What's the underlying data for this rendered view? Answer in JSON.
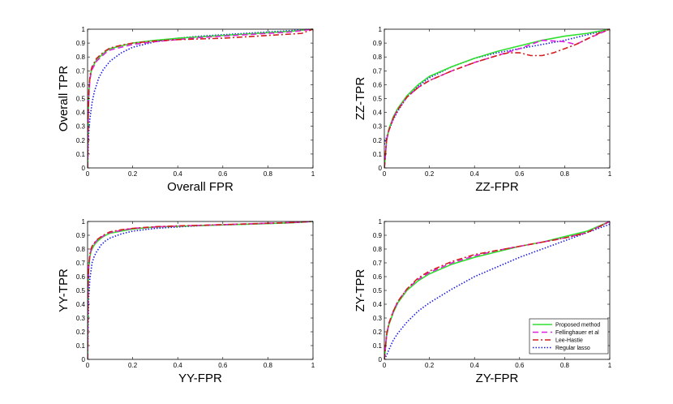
{
  "chart_data": [
    {
      "type": "line",
      "xlabel": "Overall FPR",
      "ylabel": "Overall TPR",
      "xlim": [
        0,
        1
      ],
      "ylim": [
        0,
        1
      ],
      "xticks": [
        "0",
        "0.2",
        "0.4",
        "0.6",
        "0.8",
        "1"
      ],
      "yticks": [
        "0",
        "0.1",
        "0.2",
        "0.3",
        "0.4",
        "0.5",
        "0.6",
        "0.7",
        "0.8",
        "0.9",
        "1"
      ],
      "legend": false,
      "series": [
        {
          "name": "Proposed method",
          "x": [
            0,
            0.003,
            0.006,
            0.01,
            0.015,
            0.02,
            0.03,
            0.04,
            0.06,
            0.08,
            0.1,
            0.15,
            0.2,
            0.3,
            0.4,
            0.5,
            0.6,
            0.7,
            0.8,
            0.9,
            1.0
          ],
          "y": [
            0,
            0.4,
            0.55,
            0.64,
            0.69,
            0.72,
            0.75,
            0.78,
            0.81,
            0.84,
            0.86,
            0.88,
            0.9,
            0.92,
            0.935,
            0.945,
            0.955,
            0.965,
            0.975,
            0.985,
            1.0
          ]
        },
        {
          "name": "Fellinghauer et al",
          "x": [
            0,
            0.003,
            0.006,
            0.01,
            0.015,
            0.02,
            0.03,
            0.04,
            0.06,
            0.08,
            0.1,
            0.15,
            0.2,
            0.3,
            0.4,
            0.5,
            0.6,
            0.7,
            0.8,
            0.9,
            1.0
          ],
          "y": [
            0,
            0.38,
            0.53,
            0.63,
            0.68,
            0.71,
            0.74,
            0.77,
            0.8,
            0.83,
            0.85,
            0.87,
            0.89,
            0.91,
            0.925,
            0.94,
            0.95,
            0.96,
            0.97,
            0.98,
            1.0
          ]
        },
        {
          "name": "Lee-Hastie",
          "x": [
            0,
            0.003,
            0.006,
            0.01,
            0.015,
            0.02,
            0.03,
            0.04,
            0.06,
            0.08,
            0.1,
            0.15,
            0.2,
            0.3,
            0.4,
            0.5,
            0.6,
            0.7,
            0.8,
            0.9,
            0.95,
            1.0
          ],
          "y": [
            0,
            0.42,
            0.57,
            0.65,
            0.7,
            0.73,
            0.76,
            0.79,
            0.82,
            0.845,
            0.865,
            0.885,
            0.9,
            0.915,
            0.925,
            0.93,
            0.935,
            0.945,
            0.955,
            0.965,
            0.97,
            1.0
          ]
        },
        {
          "name": "Regular lasso",
          "x": [
            0,
            0.005,
            0.01,
            0.02,
            0.03,
            0.05,
            0.07,
            0.1,
            0.15,
            0.2,
            0.3,
            0.4,
            0.5,
            0.6,
            0.7,
            0.8,
            0.9,
            1.0
          ],
          "y": [
            0,
            0.25,
            0.35,
            0.47,
            0.55,
            0.65,
            0.71,
            0.77,
            0.83,
            0.87,
            0.91,
            0.935,
            0.95,
            0.96,
            0.97,
            0.98,
            0.99,
            1.0
          ]
        }
      ]
    },
    {
      "type": "line",
      "xlabel": "ZZ-FPR",
      "ylabel": "ZZ-TPR",
      "xlim": [
        0,
        1
      ],
      "ylim": [
        0,
        1
      ],
      "xticks": [
        "0",
        "0.2",
        "0.4",
        "0.6",
        "0.8",
        "1"
      ],
      "yticks": [
        "0",
        "0.1",
        "0.2",
        "0.3",
        "0.4",
        "0.5",
        "0.6",
        "0.7",
        "0.8",
        "0.9",
        "1"
      ],
      "legend": false,
      "series": [
        {
          "name": "Proposed method",
          "x": [
            0,
            0.01,
            0.02,
            0.04,
            0.06,
            0.1,
            0.15,
            0.2,
            0.3,
            0.4,
            0.5,
            0.6,
            0.7,
            0.8,
            0.9,
            1.0
          ],
          "y": [
            0,
            0.2,
            0.28,
            0.37,
            0.43,
            0.52,
            0.6,
            0.66,
            0.73,
            0.79,
            0.84,
            0.88,
            0.92,
            0.95,
            0.97,
            1.0
          ]
        },
        {
          "name": "Fellinghauer et al",
          "x": [
            0,
            0.01,
            0.02,
            0.04,
            0.06,
            0.1,
            0.15,
            0.2,
            0.3,
            0.4,
            0.5,
            0.6,
            0.7,
            0.8,
            0.85,
            0.9,
            1.0
          ],
          "y": [
            0,
            0.2,
            0.27,
            0.36,
            0.42,
            0.51,
            0.58,
            0.63,
            0.7,
            0.76,
            0.81,
            0.86,
            0.92,
            0.91,
            0.89,
            0.93,
            1.0
          ]
        },
        {
          "name": "Lee-Hastie",
          "x": [
            0,
            0.01,
            0.02,
            0.04,
            0.06,
            0.1,
            0.15,
            0.2,
            0.3,
            0.4,
            0.5,
            0.55,
            0.6,
            0.65,
            0.7,
            0.75,
            0.8,
            0.85,
            0.9,
            0.95,
            1.0
          ],
          "y": [
            0,
            0.2,
            0.27,
            0.36,
            0.42,
            0.51,
            0.58,
            0.63,
            0.7,
            0.76,
            0.81,
            0.83,
            0.83,
            0.81,
            0.81,
            0.83,
            0.86,
            0.89,
            0.93,
            0.97,
            1.0
          ]
        },
        {
          "name": "Regular lasso",
          "x": [
            0,
            0.005,
            0.01,
            0.02,
            0.04,
            0.06,
            0.1,
            0.15,
            0.2,
            0.3,
            0.4,
            0.5,
            0.6,
            0.7,
            0.8,
            0.9,
            1.0
          ],
          "y": [
            0.17,
            0.2,
            0.22,
            0.27,
            0.35,
            0.41,
            0.51,
            0.59,
            0.65,
            0.73,
            0.79,
            0.83,
            0.86,
            0.89,
            0.92,
            0.96,
            1.0
          ]
        }
      ]
    },
    {
      "type": "line",
      "xlabel": "YY-FPR",
      "ylabel": "YY-TPR",
      "xlim": [
        0,
        1
      ],
      "ylim": [
        0,
        1
      ],
      "xticks": [
        "0",
        "0.2",
        "0.4",
        "0.6",
        "0.8",
        "1"
      ],
      "yticks": [
        "0",
        "0.1",
        "0.2",
        "0.3",
        "0.4",
        "0.5",
        "0.6",
        "0.7",
        "0.8",
        "0.9",
        "1"
      ],
      "legend": false,
      "series": [
        {
          "name": "Proposed method",
          "x": [
            0,
            0.002,
            0.005,
            0.01,
            0.015,
            0.02,
            0.03,
            0.04,
            0.06,
            0.08,
            0.1,
            0.15,
            0.2,
            0.3,
            0.4,
            0.5,
            0.6,
            0.7,
            0.8,
            0.9,
            1.0
          ],
          "y": [
            0,
            0.5,
            0.66,
            0.74,
            0.78,
            0.8,
            0.83,
            0.85,
            0.88,
            0.9,
            0.915,
            0.93,
            0.945,
            0.96,
            0.965,
            0.97,
            0.975,
            0.98,
            0.985,
            0.99,
            1.0
          ]
        },
        {
          "name": "Fellinghauer et al",
          "x": [
            0,
            0.002,
            0.005,
            0.01,
            0.015,
            0.02,
            0.03,
            0.04,
            0.06,
            0.08,
            0.1,
            0.15,
            0.2,
            0.3,
            0.4,
            0.5,
            0.6,
            0.7,
            0.8,
            0.9,
            1.0
          ],
          "y": [
            0,
            0.52,
            0.67,
            0.75,
            0.79,
            0.81,
            0.84,
            0.86,
            0.885,
            0.905,
            0.92,
            0.935,
            0.95,
            0.96,
            0.967,
            0.972,
            0.977,
            0.982,
            0.987,
            0.992,
            1.0
          ]
        },
        {
          "name": "Lee-Hastie",
          "x": [
            0,
            0.002,
            0.005,
            0.01,
            0.015,
            0.02,
            0.03,
            0.04,
            0.06,
            0.08,
            0.1,
            0.15,
            0.2,
            0.3,
            0.4,
            0.5,
            0.6,
            0.7,
            0.8,
            0.9,
            1.0
          ],
          "y": [
            0,
            0.53,
            0.68,
            0.76,
            0.8,
            0.82,
            0.845,
            0.865,
            0.89,
            0.91,
            0.925,
            0.94,
            0.95,
            0.962,
            0.968,
            0.972,
            0.977,
            0.982,
            0.987,
            0.992,
            1.0
          ]
        },
        {
          "name": "Regular lasso",
          "x": [
            0,
            0.005,
            0.01,
            0.02,
            0.03,
            0.04,
            0.06,
            0.08,
            0.1,
            0.15,
            0.2,
            0.3,
            0.4,
            0.5,
            0.6,
            0.7,
            0.8,
            0.9,
            1.0
          ],
          "y": [
            0,
            0.45,
            0.58,
            0.7,
            0.75,
            0.78,
            0.83,
            0.86,
            0.88,
            0.91,
            0.93,
            0.95,
            0.96,
            0.97,
            0.975,
            0.98,
            0.985,
            0.99,
            1.0
          ]
        }
      ]
    },
    {
      "type": "line",
      "xlabel": "ZY-FPR",
      "ylabel": "ZY-TPR",
      "xlim": [
        0,
        1
      ],
      "ylim": [
        0,
        1
      ],
      "xticks": [
        "0",
        "0.2",
        "0.4",
        "0.6",
        "0.8",
        "1"
      ],
      "yticks": [
        "0",
        "0.1",
        "0.2",
        "0.3",
        "0.4",
        "0.5",
        "0.6",
        "0.7",
        "0.8",
        "0.9",
        "1"
      ],
      "legend": true,
      "legend_position": "bottom-right",
      "series": [
        {
          "name": "Proposed method",
          "x": [
            0,
            0.01,
            0.02,
            0.04,
            0.06,
            0.1,
            0.15,
            0.2,
            0.3,
            0.4,
            0.5,
            0.6,
            0.7,
            0.8,
            0.9,
            1.0
          ],
          "y": [
            0,
            0.17,
            0.25,
            0.34,
            0.41,
            0.5,
            0.57,
            0.62,
            0.69,
            0.74,
            0.78,
            0.82,
            0.85,
            0.89,
            0.93,
            1.0
          ]
        },
        {
          "name": "Fellinghauer et al",
          "x": [
            0,
            0.01,
            0.02,
            0.04,
            0.06,
            0.1,
            0.15,
            0.2,
            0.3,
            0.4,
            0.5,
            0.6,
            0.7,
            0.8,
            0.9,
            1.0
          ],
          "y": [
            0,
            0.18,
            0.26,
            0.35,
            0.42,
            0.51,
            0.58,
            0.63,
            0.7,
            0.75,
            0.79,
            0.82,
            0.85,
            0.88,
            0.92,
            1.0
          ]
        },
        {
          "name": "Lee-Hastie",
          "x": [
            0,
            0.01,
            0.02,
            0.04,
            0.06,
            0.1,
            0.15,
            0.2,
            0.3,
            0.4,
            0.5,
            0.6,
            0.7,
            0.8,
            0.9,
            1.0
          ],
          "y": [
            0,
            0.18,
            0.26,
            0.35,
            0.42,
            0.51,
            0.59,
            0.64,
            0.71,
            0.76,
            0.79,
            0.82,
            0.85,
            0.88,
            0.92,
            1.0
          ]
        },
        {
          "name": "Regular lasso",
          "x": [
            0,
            0.01,
            0.02,
            0.04,
            0.06,
            0.1,
            0.15,
            0.2,
            0.3,
            0.4,
            0.5,
            0.6,
            0.7,
            0.8,
            0.9,
            1.0
          ],
          "y": [
            0,
            0.03,
            0.07,
            0.14,
            0.19,
            0.27,
            0.35,
            0.41,
            0.51,
            0.6,
            0.67,
            0.74,
            0.8,
            0.86,
            0.92,
            0.98
          ]
        }
      ]
    }
  ],
  "series_styles": [
    {
      "name": "Proposed method",
      "color": "#2ee02e",
      "dash": ""
    },
    {
      "name": "Fellinghauer et al",
      "color": "#e020e0",
      "dash": "7,4"
    },
    {
      "name": "Lee-Hastie",
      "color": "#d21e1e",
      "dash": "7,3,2,3"
    },
    {
      "name": "Regular lasso",
      "color": "#1a1ae6",
      "dash": "1.5,2"
    }
  ]
}
